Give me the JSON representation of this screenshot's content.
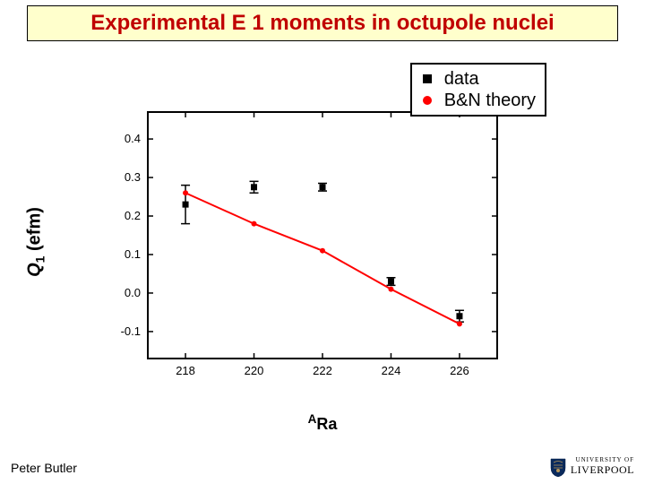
{
  "title": "Experimental E 1 moments in octupole nuclei",
  "title_color": "#c00000",
  "title_bg": "#ffffcc",
  "ylabel_html": "Q<sub>1</sub> (efm)",
  "xlabel_html": "<sup>A</sup>Ra",
  "footer_left": "Peter Butler",
  "logo_top": "UNIVERSITY OF",
  "logo_bottom": "LIVERPOOL",
  "chart": {
    "type": "scatter+line",
    "x_axis": {
      "min": 216.9,
      "max": 227.1,
      "ticks": [
        218,
        220,
        222,
        224,
        226
      ],
      "tick_fontsize": 13
    },
    "y_axis": {
      "min": -0.17,
      "max": 0.47,
      "ticks": [
        -0.1,
        0.0,
        0.1,
        0.2,
        0.3,
        0.4
      ],
      "tick_fontsize": 13
    },
    "frame_color": "#000000",
    "frame_width": 2,
    "tick_len": 6,
    "series": [
      {
        "name": "data",
        "color": "#000000",
        "marker": "square",
        "marker_size": 7,
        "error_cap": 5,
        "points": [
          {
            "x": 218,
            "y": 0.23,
            "err": 0.05
          },
          {
            "x": 220,
            "y": 0.275,
            "err": 0.015
          },
          {
            "x": 222,
            "y": 0.275,
            "err": 0.01
          },
          {
            "x": 224,
            "y": 0.03,
            "err": 0.01
          },
          {
            "x": 226,
            "y": -0.06,
            "err": 0.015
          }
        ]
      },
      {
        "name": "B&N theory",
        "color": "#ff0000",
        "marker": "circle",
        "marker_size": 6,
        "line": true,
        "line_width": 2,
        "points": [
          {
            "x": 218,
            "y": 0.26
          },
          {
            "x": 220,
            "y": 0.18
          },
          {
            "x": 222,
            "y": 0.11
          },
          {
            "x": 224,
            "y": 0.01
          },
          {
            "x": 226,
            "y": -0.08
          }
        ]
      }
    ],
    "legend": {
      "items": [
        {
          "label": "data",
          "marker": "square",
          "color": "#000000"
        },
        {
          "label": "B&N theory",
          "marker": "circle",
          "color": "#ff0000"
        }
      ],
      "fontsize": 20
    }
  }
}
